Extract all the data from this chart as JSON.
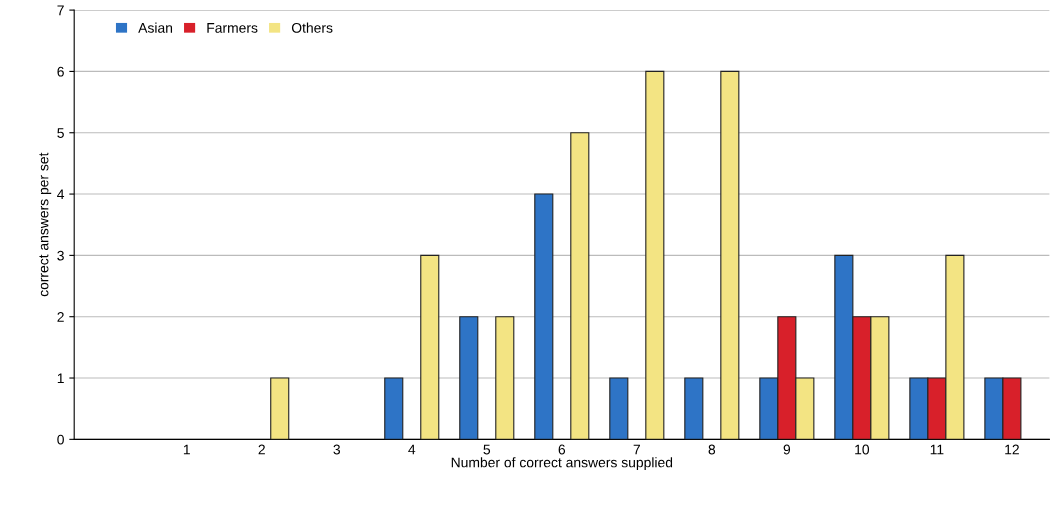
{
  "chart_data": {
    "type": "bar",
    "xlabel": "Number of correct answers supplied",
    "ylabel": "correct answers per set",
    "categories": [
      null,
      "1",
      "2",
      "3",
      "4",
      "5",
      "6",
      "7",
      "8",
      "9",
      "10",
      "11",
      "12"
    ],
    "series": [
      {
        "name": "Asian",
        "color": "#2e74c6",
        "values": [
          0,
          0,
          0,
          0,
          1,
          2,
          4,
          1,
          1,
          1,
          3,
          1,
          1
        ]
      },
      {
        "name": "Farmers",
        "color": "#d8202a",
        "values": [
          0,
          0,
          0,
          0,
          0,
          0,
          0,
          0,
          0,
          2,
          2,
          1,
          1
        ]
      },
      {
        "name": "Others",
        "color": "#f3e483",
        "values": [
          0,
          0,
          1,
          0,
          3,
          2,
          5,
          6,
          6,
          1,
          2,
          3,
          0
        ]
      }
    ],
    "ylim": [
      0,
      7
    ],
    "yticks": [
      0,
      1,
      2,
      3,
      4,
      5,
      6,
      7
    ],
    "grid": "y",
    "legend": "top left"
  }
}
